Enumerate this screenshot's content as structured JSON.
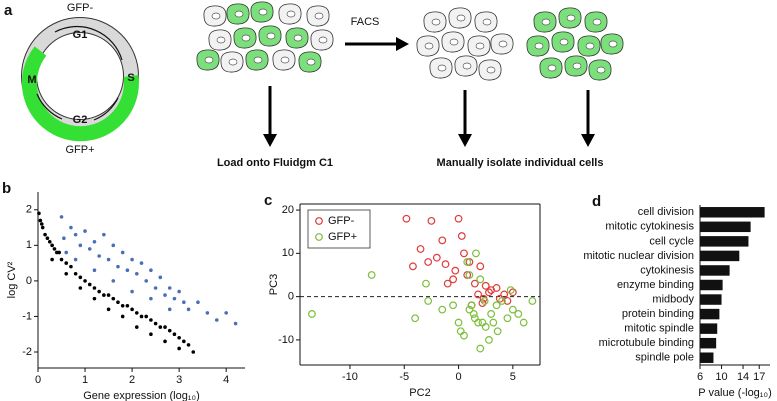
{
  "figure": {
    "panel_label": "a",
    "diagram": {
      "cycle_top": "GFP-",
      "cycle_bottom": "GFP+",
      "phases": [
        "G1",
        "S",
        "G2",
        "M"
      ],
      "arrow_label": "FACS",
      "step_left": "Load onto Fluidgm C1",
      "step_right": "Manually isolate individual cells"
    }
  },
  "chart_data": [
    {
      "type": "scatter",
      "panel": "b",
      "xlabel": "Gene expression (log₁₀)",
      "ylabel": "log CV²",
      "xlim": [
        0,
        4.4
      ],
      "ylim": [
        -2.45,
        2.5
      ],
      "xticks": [
        0,
        1,
        2,
        3,
        4
      ],
      "yticks": [
        -2,
        -1,
        0,
        1,
        2
      ],
      "marker": "filled",
      "frame": "axes",
      "series": [
        {
          "color": "#000000",
          "x": [
            0.02,
            0.05,
            0.08,
            0.1,
            0.15,
            0.2,
            0.25,
            0.3,
            0.35,
            0.4,
            0.45,
            0.5,
            0.6,
            0.7,
            0.8,
            0.9,
            1.0,
            1.1,
            1.2,
            1.3,
            1.4,
            1.5,
            1.6,
            1.7,
            1.8,
            1.9,
            2.0,
            2.1,
            2.2,
            2.3,
            2.4,
            2.5,
            2.6,
            2.7,
            2.8,
            2.9,
            3.0,
            3.1,
            3.2,
            3.3,
            0.3,
            0.6,
            0.9,
            1.2,
            1.5,
            1.8,
            2.1,
            2.4,
            2.7,
            3.0
          ],
          "values": [
            1.9,
            1.7,
            1.6,
            1.5,
            1.3,
            1.2,
            1.1,
            1.0,
            0.9,
            0.8,
            0.8,
            0.6,
            0.5,
            0.4,
            0.2,
            0.1,
            0.0,
            -0.1,
            -0.2,
            -0.3,
            -0.4,
            -0.4,
            -0.5,
            -0.6,
            -0.7,
            -0.7,
            -0.8,
            -0.9,
            -1.0,
            -1.0,
            -1.1,
            -1.2,
            -1.3,
            -1.3,
            -1.4,
            -1.5,
            -1.6,
            -1.7,
            -1.8,
            -2.0,
            0.6,
            0.2,
            -0.2,
            -0.5,
            -0.8,
            -1.0,
            -1.3,
            -1.5,
            -1.7,
            -1.9
          ]
        },
        {
          "color": "#4a6fb5",
          "x": [
            0.5,
            0.55,
            0.6,
            0.7,
            0.8,
            0.9,
            1.0,
            1.1,
            1.2,
            1.3,
            1.4,
            1.5,
            1.6,
            1.7,
            1.8,
            1.9,
            2.0,
            2.1,
            2.2,
            2.3,
            2.4,
            2.5,
            2.6,
            2.7,
            2.8,
            2.9,
            3.0,
            3.1,
            3.2,
            3.4,
            3.6,
            3.8,
            4.0,
            4.2,
            0.8,
            1.2,
            1.6,
            2.0,
            2.4,
            2.8
          ],
          "values": [
            1.8,
            1.2,
            0.8,
            1.5,
            1.3,
            1.0,
            1.4,
            0.9,
            1.1,
            0.7,
            1.3,
            0.6,
            1.0,
            0.4,
            0.8,
            0.3,
            0.6,
            0.2,
            0.5,
            0.0,
            0.3,
            -0.2,
            0.1,
            -0.4,
            -0.2,
            -0.5,
            -0.3,
            -0.6,
            -0.8,
            -0.6,
            -0.9,
            -1.1,
            -0.9,
            -1.2,
            0.6,
            0.3,
            0.0,
            -0.3,
            -0.5,
            -0.8
          ]
        }
      ]
    },
    {
      "type": "scatter",
      "panel": "c",
      "xlabel": "PC2",
      "ylabel": "PC3",
      "xlim": [
        -14.6,
        7.5
      ],
      "ylim": [
        -15.8,
        21.4
      ],
      "xticks": [
        -10,
        -5,
        0,
        5
      ],
      "yticks": [
        -10,
        0,
        10,
        20
      ],
      "marker": "open",
      "frame": "box",
      "hline": 0,
      "legend": "upper left",
      "series": [
        {
          "name": "GFP-",
          "color": "#e03a3a",
          "x": [
            -4.8,
            -2.5,
            -1.5,
            0,
            -3.5,
            -2.8,
            -4.2,
            -1.2,
            0.3,
            1.0,
            -0.3,
            0.8,
            2.0,
            -1.0,
            -0.5,
            1.5,
            2.5,
            3.0,
            1.8,
            2.3,
            2.8,
            3.5,
            4.2,
            5.0,
            4.5,
            2.2,
            1.2,
            3.8,
            -2.0,
            0.5
          ],
          "values": [
            18,
            17.5,
            13,
            18,
            11,
            8,
            7,
            7.5,
            14,
            8,
            6,
            5,
            7,
            3,
            4,
            3,
            2.5,
            1.5,
            0.5,
            -0.5,
            1,
            2,
            0.5,
            1,
            -1,
            -1.5,
            -2,
            -0.5,
            9,
            10
          ]
        },
        {
          "name": "GFP+",
          "color": "#7cbf3c",
          "x": [
            -13.5,
            -8,
            -4,
            -2.8,
            -1.5,
            0,
            0.5,
            1.0,
            1.5,
            2.0,
            2.5,
            3.0,
            3.5,
            4.0,
            4.5,
            5.0,
            5.5,
            6.0,
            6.8,
            1.2,
            1.8,
            2.2,
            0.2,
            -0.5,
            2.8,
            3.2,
            1.6,
            2.0,
            0.8,
            1.0,
            4.8,
            -3,
            3.6,
            2.4,
            1.4
          ],
          "values": [
            -4,
            5,
            -5,
            -1,
            -3,
            -6,
            -9,
            -3,
            -5,
            -12,
            -7,
            -4,
            -2,
            -1,
            -5,
            -3,
            -4,
            -6,
            -1,
            -2,
            -6,
            -6,
            -8,
            -2,
            -10,
            -6,
            10,
            4,
            8,
            5,
            1.5,
            3,
            -8,
            -1,
            -4
          ]
        }
      ]
    },
    {
      "type": "hbar",
      "panel": "d",
      "xlabel": "P value (-log₁₀)",
      "categories": [
        "cell division",
        "mitotic cytokinesis",
        "cell cycle",
        "mitotic nuclear division",
        "cytokinesis",
        "enzyme binding",
        "midbody",
        "protein binding",
        "mitotic spindle",
        "microtubule binding",
        "spindle pole"
      ],
      "values": [
        18,
        15.4,
        15,
        13.3,
        11.5,
        10.2,
        10,
        9.6,
        9.2,
        9,
        8.5
      ],
      "color": "#111111",
      "xlim": [
        6,
        19
      ],
      "xticks": [
        6,
        10,
        14,
        17
      ],
      "frame": "axes"
    }
  ]
}
